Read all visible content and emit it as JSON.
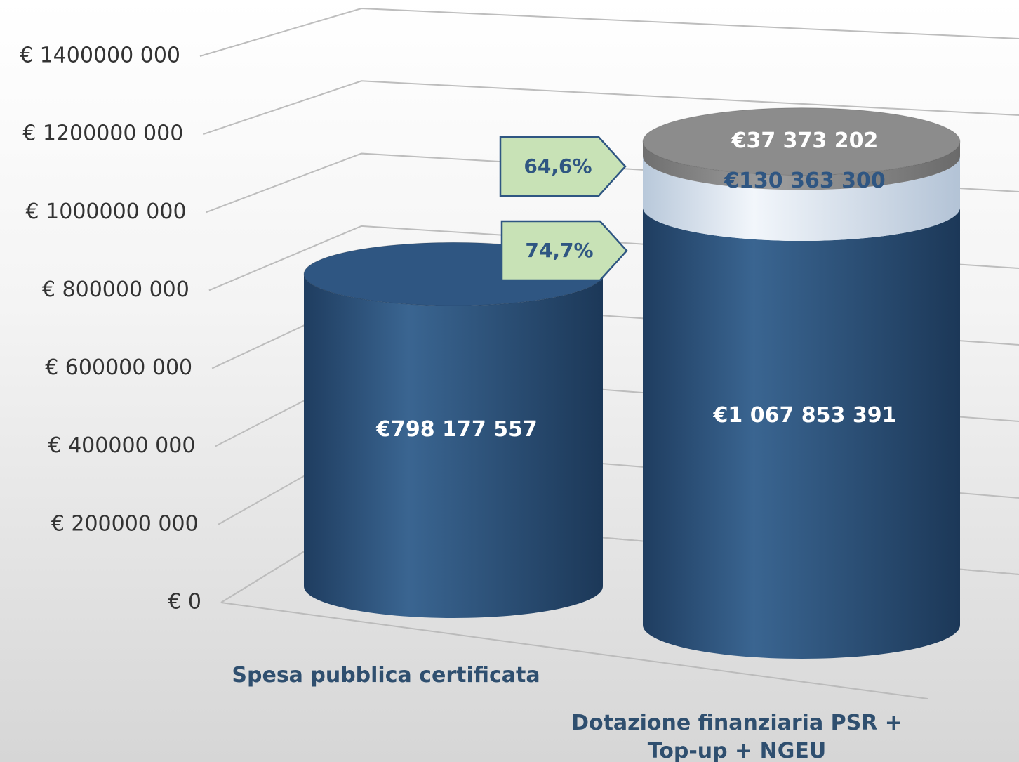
{
  "chart_data": {
    "type": "cylinder",
    "categories": [
      "Spesa pubblica certificata",
      "Dotazione finanziaria PSR + Top-up + NGEU"
    ],
    "series": [
      {
        "color": "#2f5682",
        "values": [
          798177557,
          1067853391
        ],
        "value_labels": [
          "€798 177 557",
          "€1 067 853 391"
        ]
      },
      {
        "color": "#dbe6f1",
        "values": [
          null,
          130363300
        ],
        "value_labels": [
          null,
          "€130 363 300"
        ]
      },
      {
        "color": "#8c8c8c",
        "values": [
          null,
          37373202
        ],
        "value_labels": [
          null,
          "€37 373 202"
        ]
      }
    ],
    "ylim": [
      0,
      1400000000
    ],
    "yticks": [
      {
        "value": 0,
        "label": "€  0"
      },
      {
        "value": 200000000,
        "label": "€ 200000 000"
      },
      {
        "value": 400000000,
        "label": "€ 400000 000"
      },
      {
        "value": 600000000,
        "label": "€ 600000 000"
      },
      {
        "value": 800000000,
        "label": "€ 800000 000"
      },
      {
        "value": 1000000000,
        "label": "€ 1000000 000"
      },
      {
        "value": 1200000000,
        "label": "€ 1200000 000"
      },
      {
        "value": 1400000000,
        "label": "€ 1400000 000"
      }
    ],
    "grid": true,
    "annotations": [
      {
        "text": "64,6%"
      },
      {
        "text": "74,7%"
      }
    ]
  }
}
